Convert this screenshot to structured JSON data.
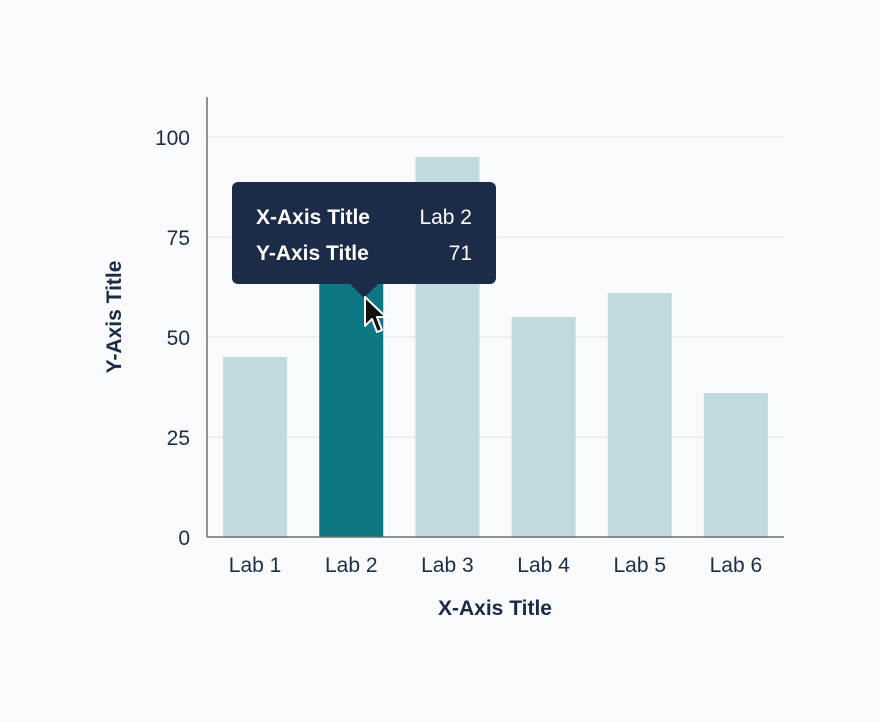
{
  "chart_data": {
    "type": "bar",
    "categories": [
      "Lab 1",
      "Lab 2",
      "Lab 3",
      "Lab 4",
      "Lab 5",
      "Lab 6"
    ],
    "values": [
      45,
      71,
      95,
      55,
      61,
      36
    ],
    "xlabel": "X-Axis Title",
    "ylabel": "Y-Axis Title",
    "ylim": [
      0,
      110
    ],
    "yticks": [
      0,
      25,
      50,
      75,
      100
    ],
    "grid": true,
    "highlighted_category": "Lab 2"
  },
  "colors": {
    "bar": "#c0dadf",
    "bar_highlight": "#0f7783",
    "grid": "#e6ebf0",
    "axis": "#6b6f75"
  },
  "tooltip": {
    "rows": [
      {
        "key": "X-Axis Title",
        "value": "Lab 2"
      },
      {
        "key": "Y-Axis Title",
        "value": "71"
      }
    ]
  },
  "cursor_icon": "pointer-arrow-icon"
}
